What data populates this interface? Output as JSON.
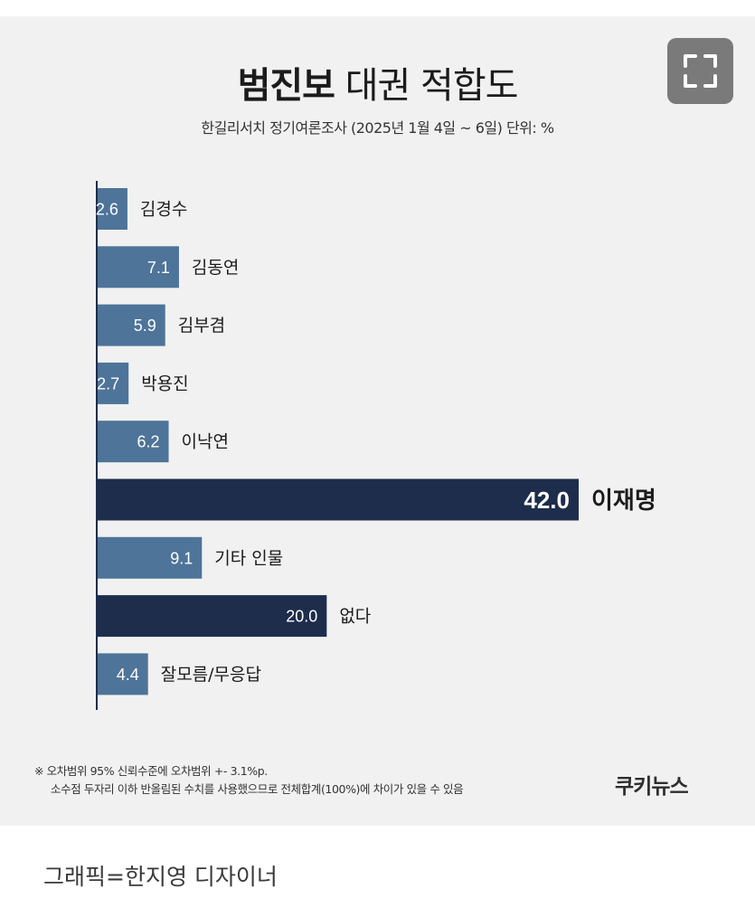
{
  "header": {
    "title_bold": "범진보",
    "title_rest": "대권 적합도",
    "subtitle": "한길리서치 정기여론조사 (2025년 1월 4일 ~ 6일) 단위: %"
  },
  "toolbar": {
    "expand_icon": "expand-icon"
  },
  "colors": {
    "bar": "#4e7499",
    "bar_highlight": "#1e2d4c",
    "background": "#f1f1f1",
    "axis": "#1e2d4c"
  },
  "chart_data": {
    "type": "bar",
    "orientation": "horizontal",
    "title": "범진보 대권 적합도",
    "subtitle": "한길리서치 정기여론조사 (2025년 1월 4일 ~ 6일) 단위: %",
    "categories": [
      "김경수",
      "김동연",
      "김부겸",
      "박용진",
      "이낙연",
      "이재명",
      "기타 인물",
      "없다",
      "잘모름/무응답"
    ],
    "values": [
      2.6,
      7.1,
      5.9,
      2.7,
      6.2,
      42.0,
      9.1,
      20.0,
      4.4
    ],
    "value_labels": [
      "2.6",
      "7.1",
      "5.9",
      "2.7",
      "6.2",
      "42.0",
      "9.1",
      "20.0",
      "4.4"
    ],
    "highlight": [
      "이재명",
      "없다"
    ],
    "xlim": [
      0,
      42
    ],
    "grid": false,
    "legend": "none"
  },
  "footnote": {
    "line1": "※ 오차범위 95% 신뢰수준에 오차범위 +- 3.1%p.",
    "line2": "소수점 두자리 이하 반올림된 수치를 사용했으므로 전체합계(100%)에 차이가 있을 수 있음"
  },
  "logo": "쿠키뉴스",
  "caption": "그래픽=한지영 디자이너"
}
